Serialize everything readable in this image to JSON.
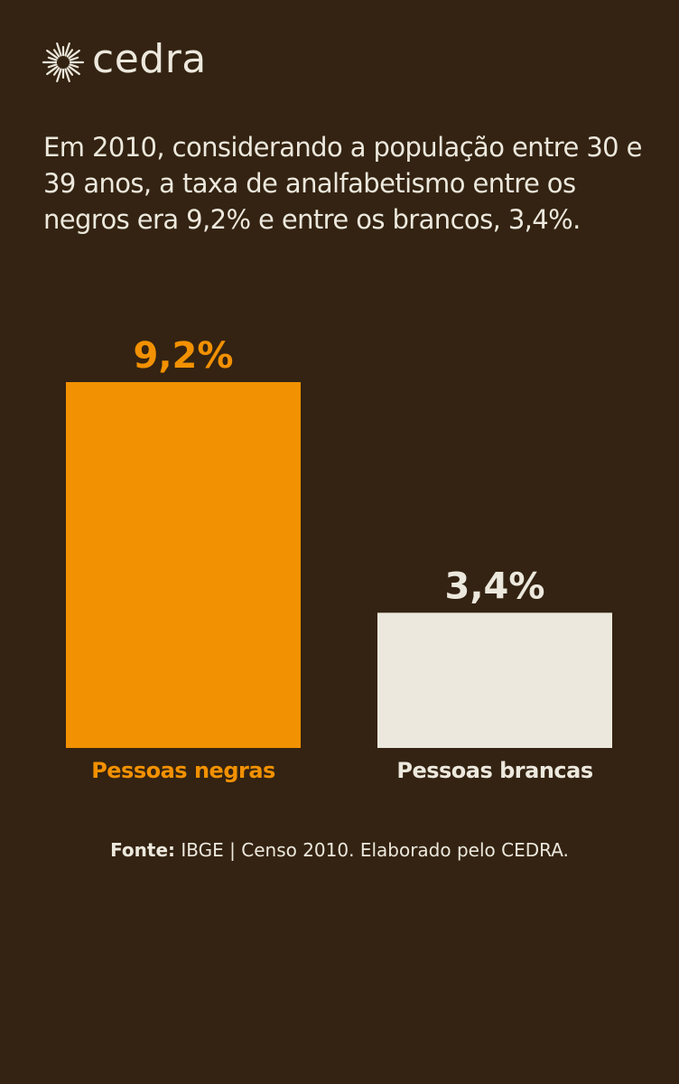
{
  "brand": {
    "name": "cedra",
    "icon": "sunburst-icon"
  },
  "headline": "Em 2010, considerando a população entre 30 e 39 anos, a taxa de analfabetismo entre os negros era 9,2% e entre os brancos, 3,4%.",
  "source": {
    "label": "Fonte:",
    "text": "IBGE | Censo 2010. Elaborado pelo CEDRA."
  },
  "colors": {
    "background": "#342312",
    "text": "#ece8dd",
    "negras": "#f29101",
    "brancas": "#ece8dd"
  },
  "chart_data": {
    "type": "bar",
    "categories": [
      "Pessoas negras",
      "Pessoas brancas"
    ],
    "values": [
      9.2,
      3.4
    ],
    "value_labels": [
      "9,2%",
      "3,4%"
    ],
    "bar_colors": [
      "#f29101",
      "#ece8dd"
    ],
    "title": "",
    "xlabel": "",
    "ylabel": "",
    "ylim": [
      0,
      9.2
    ],
    "grid": false,
    "legend": "none"
  }
}
